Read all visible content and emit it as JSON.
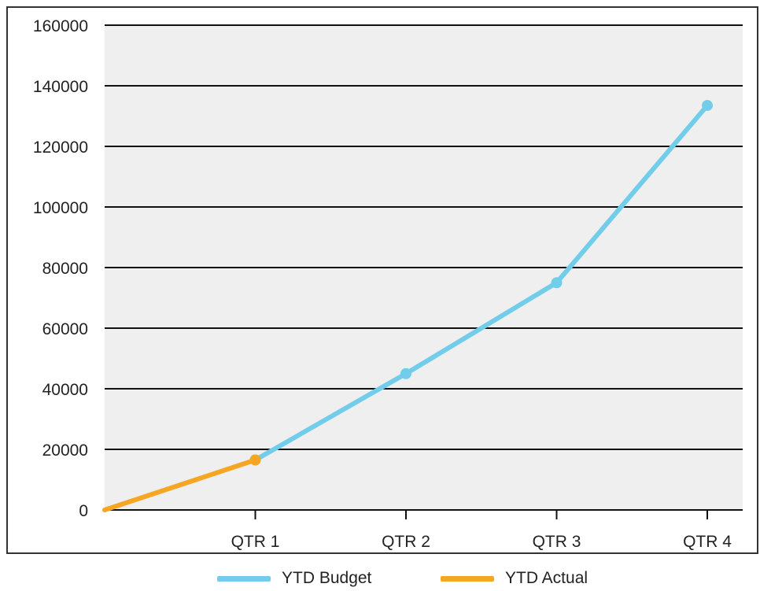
{
  "chart_data": {
    "type": "line",
    "categories": [
      "",
      "QTR 1",
      "QTR 2",
      "QTR 3",
      "QTR 4"
    ],
    "x_tick_labels": [
      "QTR 1",
      "QTR 2",
      "QTR 3",
      "QTR 4"
    ],
    "y_ticks": [
      "0",
      "20000",
      "40000",
      "60000",
      "80000",
      "100000",
      "120000",
      "140000",
      "160000"
    ],
    "ylim": [
      0,
      160000
    ],
    "grid": true,
    "legend_position": "bottom",
    "series": [
      {
        "name": "YTD Budget",
        "color": "#72cdea",
        "points": [
          {
            "x": "QTR 1",
            "y": 16500
          },
          {
            "x": "QTR 2",
            "y": 45000
          },
          {
            "x": "QTR 3",
            "y": 75000
          },
          {
            "x": "QTR 4",
            "y": 133500
          }
        ]
      },
      {
        "name": "YTD Actual",
        "color": "#f5a623",
        "points": [
          {
            "x": "",
            "y": 0
          },
          {
            "x": "QTR 1",
            "y": 16500
          }
        ]
      }
    ],
    "plot_background": "#efefef",
    "gridline_color": "#111111"
  },
  "legend": {
    "items": [
      {
        "label": "YTD Budget",
        "color": "#72cdea"
      },
      {
        "label": "YTD Actual",
        "color": "#f5a623"
      }
    ]
  }
}
